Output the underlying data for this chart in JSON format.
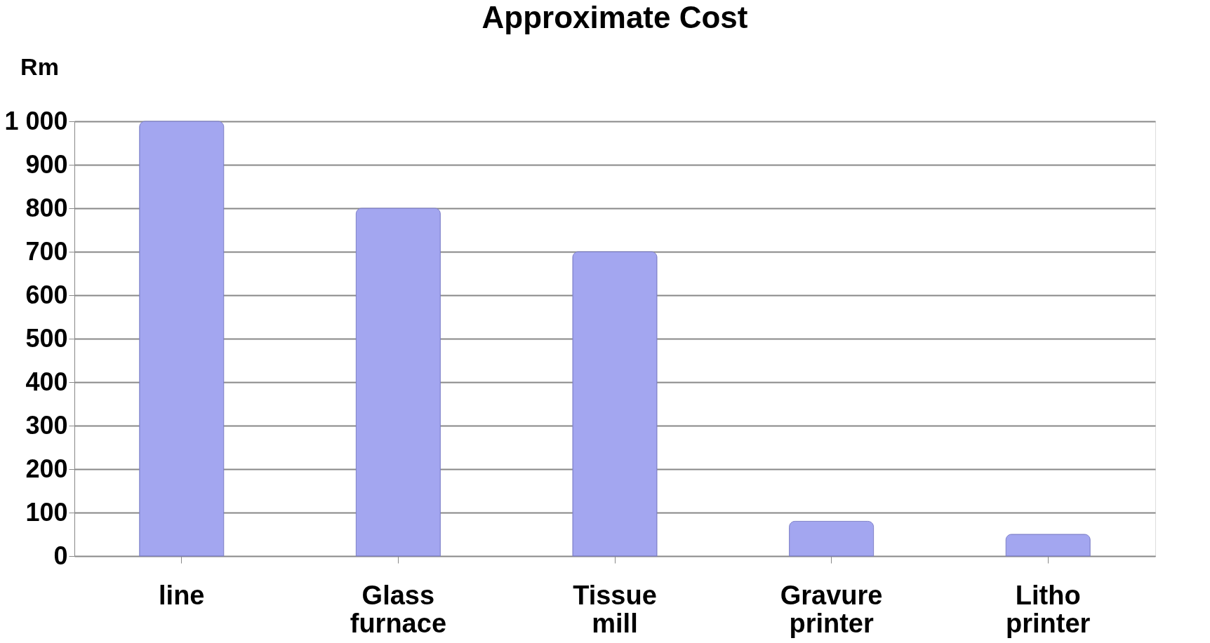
{
  "chart_data": {
    "type": "bar",
    "title": "Approximate Cost",
    "ylabel": "Rm",
    "categories": [
      "line",
      "Glass furnace",
      "Tissue mill",
      "Gravure printer",
      "Litho printer"
    ],
    "values": [
      1000,
      800,
      700,
      80,
      50
    ],
    "color": "#a3a6f0",
    "ylim": [
      0,
      1000
    ],
    "yticks": [
      0,
      100,
      200,
      300,
      400,
      500,
      600,
      700,
      800,
      900,
      {
        "value": 1000,
        "label": "1 000"
      }
    ],
    "grid": "y"
  }
}
